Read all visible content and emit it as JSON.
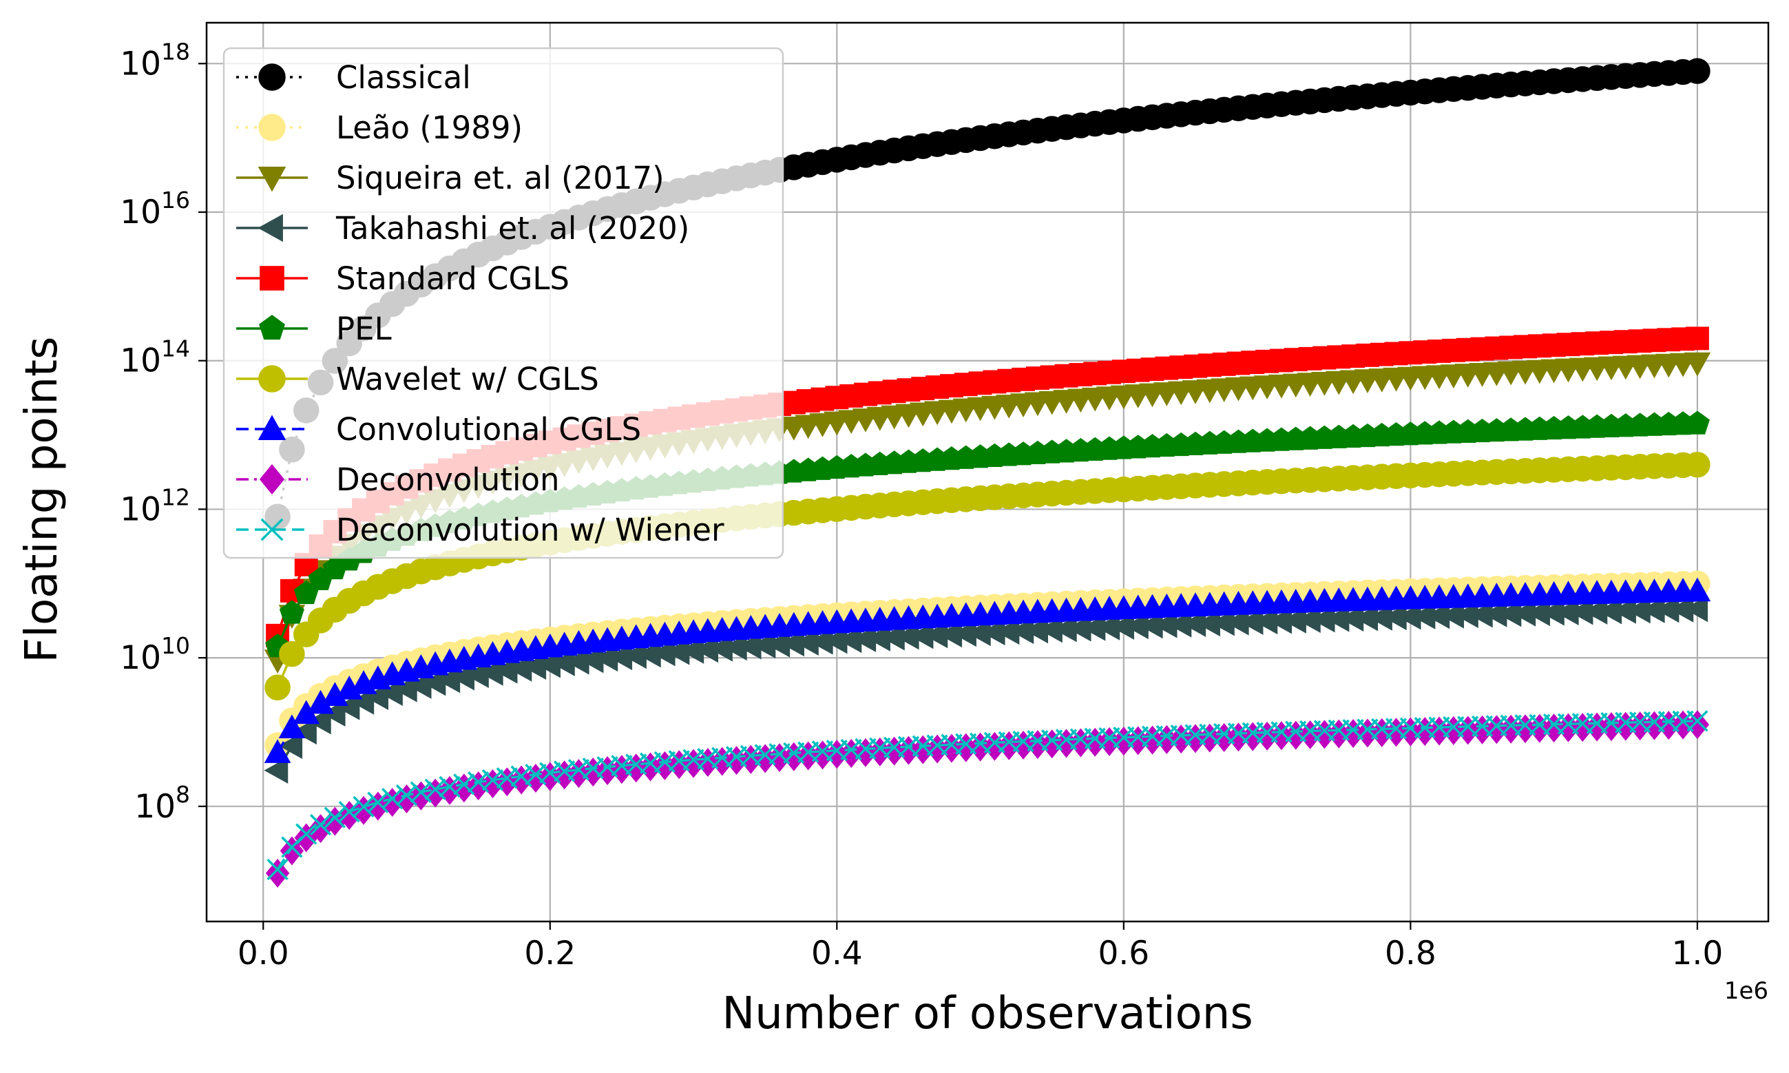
{
  "chart_data": {
    "type": "line",
    "title": "",
    "xlabel": "Number of observations",
    "ylabel": "Floating points",
    "x_offset_label": "1e6",
    "x_scale": "linear",
    "y_scale": "log",
    "xlim": [
      -0.0395,
      1.0495
    ],
    "ylim_log10": [
      6.45,
      18.55
    ],
    "grid": true,
    "legend_position": "top-left",
    "x_ticks": [
      {
        "value": 0.0,
        "label": "0.0"
      },
      {
        "value": 0.2,
        "label": "0.2"
      },
      {
        "value": 0.4,
        "label": "0.4"
      },
      {
        "value": 0.6,
        "label": "0.6"
      },
      {
        "value": 0.8,
        "label": "0.8"
      },
      {
        "value": 1.0,
        "label": "1.0"
      }
    ],
    "y_ticks": [
      {
        "exp": 8,
        "base": "10",
        "sup": "8"
      },
      {
        "exp": 10,
        "base": "10",
        "sup": "10"
      },
      {
        "exp": 12,
        "base": "10",
        "sup": "12"
      },
      {
        "exp": 14,
        "base": "10",
        "sup": "14"
      },
      {
        "exp": 16,
        "base": "10",
        "sup": "16"
      },
      {
        "exp": 18,
        "base": "10",
        "sup": "18"
      }
    ],
    "x": {
      "start": 0.01,
      "stop": 1.0,
      "step": 0.01
    },
    "series": [
      {
        "name": "Classical",
        "color": "#000000",
        "marker": "circle",
        "line": "dotted",
        "fn": "power",
        "log10_at_1e6": 17.9,
        "exponent": 3
      },
      {
        "name": "Leão (1989)",
        "color": "#ffeb8a",
        "marker": "circle",
        "line": "dotted",
        "fn": "nlogn",
        "log10_at_1e6": 11.0
      },
      {
        "name": "Siqueira et. al (2017)",
        "color": "#808000",
        "marker": "triangle-down",
        "line": "solid",
        "fn": "power",
        "log10_at_1e6": 13.97,
        "exponent": 2
      },
      {
        "name": "Takahashi et. al (2020)",
        "color": "#2f4f4f",
        "marker": "triangle-left",
        "line": "solid",
        "fn": "nlogn",
        "log10_at_1e6": 10.66
      },
      {
        "name": "Standard CGLS",
        "color": "#ff0000",
        "marker": "square",
        "line": "solid",
        "fn": "power",
        "log10_at_1e6": 14.3,
        "exponent": 2
      },
      {
        "name": "PEL",
        "color": "#008000",
        "marker": "pentagon",
        "line": "solid",
        "fn": "power",
        "log10_at_1e6": 13.15,
        "exponent": 1.5
      },
      {
        "name": "Wavelet w/ CGLS",
        "color": "#bfbf00",
        "marker": "circle",
        "line": "solid",
        "fn": "power",
        "log10_at_1e6": 12.6,
        "exponent": 1.5
      },
      {
        "name": "Convolutional CGLS",
        "color": "#0000ff",
        "marker": "triangle-up",
        "line": "dashed",
        "fn": "nlogn",
        "log10_at_1e6": 10.9
      },
      {
        "name": "Deconvolution",
        "color": "#bf00bf",
        "marker": "diamond",
        "line": "dashdot",
        "fn": "power",
        "log10_at_1e6": 9.1,
        "exponent": 1
      },
      {
        "name": "Deconvolution w/ Wiener",
        "color": "#00bfbf",
        "marker": "x",
        "line": "dashed",
        "fn": "power",
        "log10_at_1e6": 9.15,
        "exponent": 1
      }
    ]
  }
}
